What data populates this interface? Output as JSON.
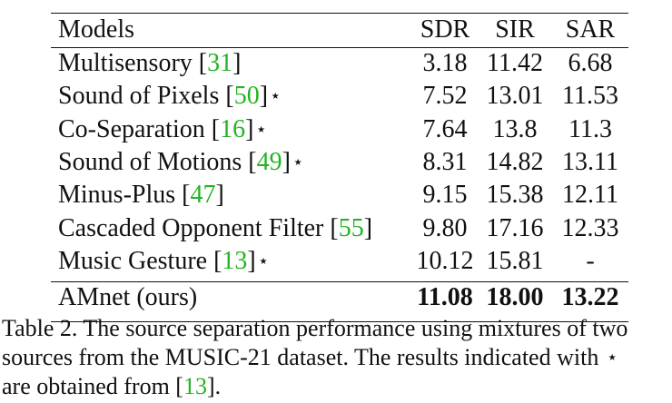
{
  "table": {
    "headers": [
      "Models",
      "SDR",
      "SIR",
      "SAR"
    ],
    "rows": [
      {
        "name": "Multisensory",
        "cite": "31",
        "star": false,
        "sdr": "3.18",
        "sir": "11.42",
        "sar": "6.68"
      },
      {
        "name": "Sound of Pixels",
        "cite": "50",
        "star": true,
        "sdr": "7.52",
        "sir": "13.01",
        "sar": "11.53"
      },
      {
        "name": "Co-Separation",
        "cite": "16",
        "star": true,
        "sdr": "7.64",
        "sir": "13.8",
        "sar": "11.3"
      },
      {
        "name": "Sound of Motions",
        "cite": "49",
        "star": true,
        "sdr": "8.31",
        "sir": "14.82",
        "sar": "13.11"
      },
      {
        "name": "Minus-Plus",
        "cite": "47",
        "star": false,
        "sdr": "9.15",
        "sir": "15.38",
        "sar": "12.11"
      },
      {
        "name": "Cascaded Opponent Filter",
        "cite": "55",
        "star": false,
        "sdr": "9.80",
        "sir": "17.16",
        "sar": "12.33"
      },
      {
        "name": "Music Gesture",
        "cite": "13",
        "star": true,
        "sdr": "10.12",
        "sir": "15.81",
        "sar": "-"
      }
    ],
    "ours": {
      "name": "AMnet (ours)",
      "sdr": "11.08",
      "sir": "18.00",
      "sar": "13.22"
    },
    "star_symbol": "⋆"
  },
  "caption": {
    "line1": "Table 2. The source separation performance using mixtures of two",
    "line2_a": "sources from the MUSIC-21 dataset.  The results indicated with",
    "line3_a": "are obtained from [",
    "line3_cite": "13",
    "line3_b": "]."
  },
  "colors": {
    "citation": "#22b422",
    "text": "#111111",
    "background": "#ffffff"
  }
}
